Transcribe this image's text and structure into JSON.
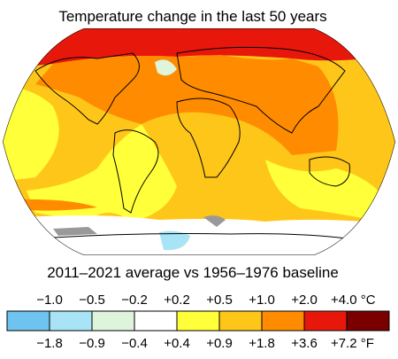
{
  "title": "Temperature change in the last 50 years",
  "subtitle": "2011–2021 average vs 1956–1976 baseline",
  "legend": {
    "colors": [
      "#6fc3ef",
      "#a9e3f6",
      "#def5dc",
      "#ffffff",
      "#ffff3a",
      "#ffc61a",
      "#ff8c00",
      "#e8170c",
      "#7a0000"
    ],
    "celsius_labels": [
      "−1.0",
      "−0.5",
      "−0.2",
      "+0.2",
      "+0.5",
      "+1.0",
      "+2.0",
      "+4.0 °C"
    ],
    "fahrenheit_labels": [
      "−1.8",
      "−0.9",
      "−0.4",
      "+0.4",
      "+0.9",
      "+1.8",
      "+3.6",
      "+7.2 °F"
    ]
  }
}
